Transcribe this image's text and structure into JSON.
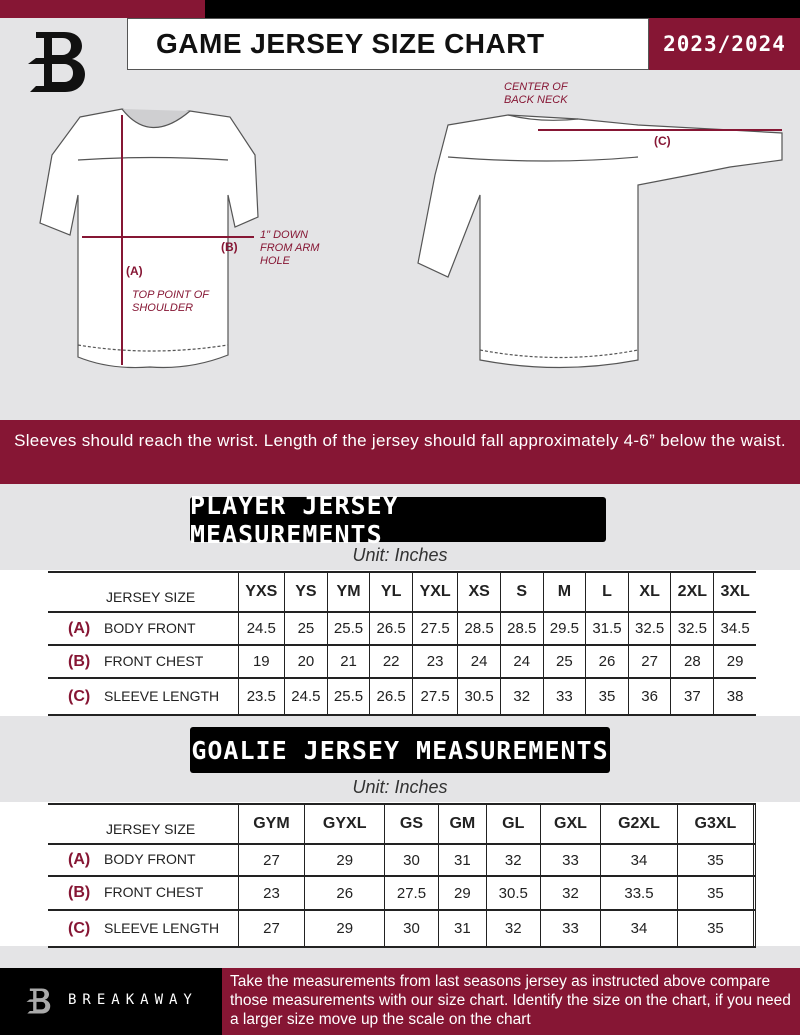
{
  "header": {
    "title": "GAME JERSEY SIZE CHART",
    "season": "2023/2024"
  },
  "diagram": {
    "center_back_neck": "CENTER OF BACK NECK",
    "label_a": "(A)",
    "label_b": "(B)",
    "label_c": "(C)",
    "top_point": "TOP POINT OF SHOULDER",
    "down_from_arm": "1\" DOWN FROM ARM HOLE"
  },
  "instructions": "Sleeves should reach the wrist. Length of the jersey should fall approximately 4-6” below the waist.",
  "player": {
    "title": "PLAYER JERSEY MEASUREMENTS",
    "unit": "Unit: Inches",
    "size_header": "JERSEY SIZE",
    "sizes": [
      "YXS",
      "YS",
      "YM",
      "YL",
      "YXL",
      "XS",
      "S",
      "M",
      "L",
      "XL",
      "2XL",
      "3XL"
    ],
    "rows": [
      {
        "code": "(A)",
        "label": "BODY FRONT",
        "values": [
          "24.5",
          "25",
          "25.5",
          "26.5",
          "27.5",
          "28.5",
          "28.5",
          "29.5",
          "31.5",
          "32.5",
          "32.5",
          "34.5"
        ]
      },
      {
        "code": "(B)",
        "label": "FRONT CHEST",
        "values": [
          "19",
          "20",
          "21",
          "22",
          "23",
          "24",
          "24",
          "25",
          "26",
          "27",
          "28",
          "29"
        ]
      },
      {
        "code": "(C)",
        "label": "SLEEVE LENGTH",
        "values": [
          "23.5",
          "24.5",
          "25.5",
          "26.5",
          "27.5",
          "30.5",
          "32",
          "33",
          "35",
          "36",
          "37",
          "38"
        ]
      }
    ]
  },
  "goalie": {
    "title": "GOALIE JERSEY MEASUREMENTS",
    "unit": "Unit: Inches",
    "size_header": "JERSEY SIZE",
    "sizes": [
      "GYM",
      "GYXL",
      "GS",
      "GM",
      "GL",
      "GXL",
      "G2XL",
      "G3XL",
      ""
    ],
    "rows": [
      {
        "code": "(A)",
        "label": "BODY FRONT",
        "values": [
          "27",
          "29",
          "30",
          "31",
          "32",
          "33",
          "34",
          "35",
          ""
        ]
      },
      {
        "code": "(B)",
        "label": "FRONT CHEST",
        "values": [
          "23",
          "26",
          "27.5",
          "29",
          "30.5",
          "32",
          "33.5",
          "35",
          ""
        ]
      },
      {
        "code": "(C)",
        "label": "SLEEVE LENGTH",
        "values": [
          "27",
          "29",
          "30",
          "31",
          "32",
          "33",
          "34",
          "35",
          ""
        ]
      }
    ]
  },
  "footer": {
    "brand": "BREAKAWAY",
    "text": "Take the measurements from last seasons jersey as instructed above compare those measurements  with our size chart. Identify the size on the chart, if you need a larger size move up the scale on the chart"
  },
  "colors": {
    "brand": "#861634",
    "dark": "#000000"
  }
}
